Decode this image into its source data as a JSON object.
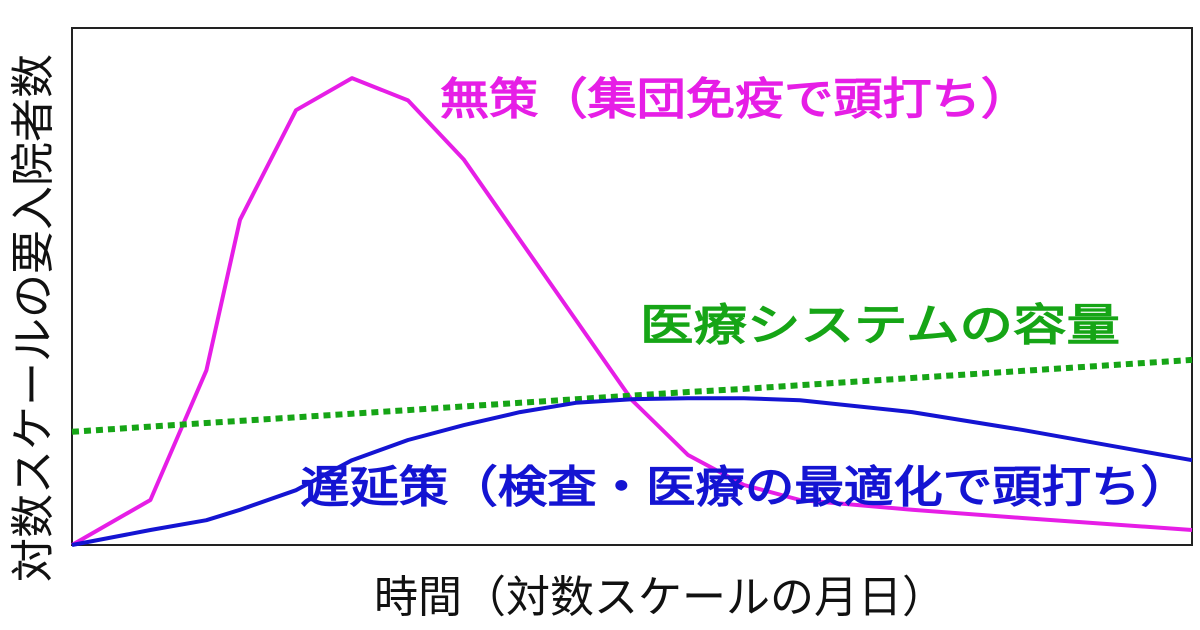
{
  "chart_data": {
    "type": "line",
    "xlabel": "時間（対数スケールの月日）",
    "ylabel": "対数スケールの要入院者数",
    "x": [
      0,
      7,
      12,
      15,
      20,
      25,
      30,
      35,
      40,
      45,
      50,
      55,
      60,
      65,
      75,
      85,
      100
    ],
    "xlim": [
      0,
      100
    ],
    "ylim": [
      0,
      100
    ],
    "series": [
      {
        "name": "無策（集団免疫で頭打ち）",
        "color": "#e61ee6",
        "style": "solid",
        "values": [
          0,
          8.7,
          33.8,
          62.9,
          84.1,
          90.3,
          86.0,
          74.5,
          59.0,
          43.5,
          28.0,
          17.4,
          11.6,
          8.7,
          6.8,
          5.2,
          2.9
        ]
      },
      {
        "name": "医療システムの容量",
        "color": "#16a516",
        "style": "dotted",
        "values": [
          21.9,
          22.9,
          23.6,
          24.0,
          24.7,
          25.4,
          26.1,
          26.8,
          27.5,
          28.2,
          28.9,
          29.6,
          30.2,
          30.9,
          32.3,
          33.7,
          35.8
        ]
      },
      {
        "name": "遅延策（検査・医療の最適化で頭打ち）",
        "color": "#1414d2",
        "style": "solid",
        "values": [
          0,
          2.9,
          4.8,
          6.8,
          10.6,
          16.4,
          20.3,
          23.2,
          25.7,
          27.5,
          28.2,
          28.4,
          28.4,
          28.0,
          25.7,
          22.2,
          16.4
        ]
      }
    ]
  }
}
